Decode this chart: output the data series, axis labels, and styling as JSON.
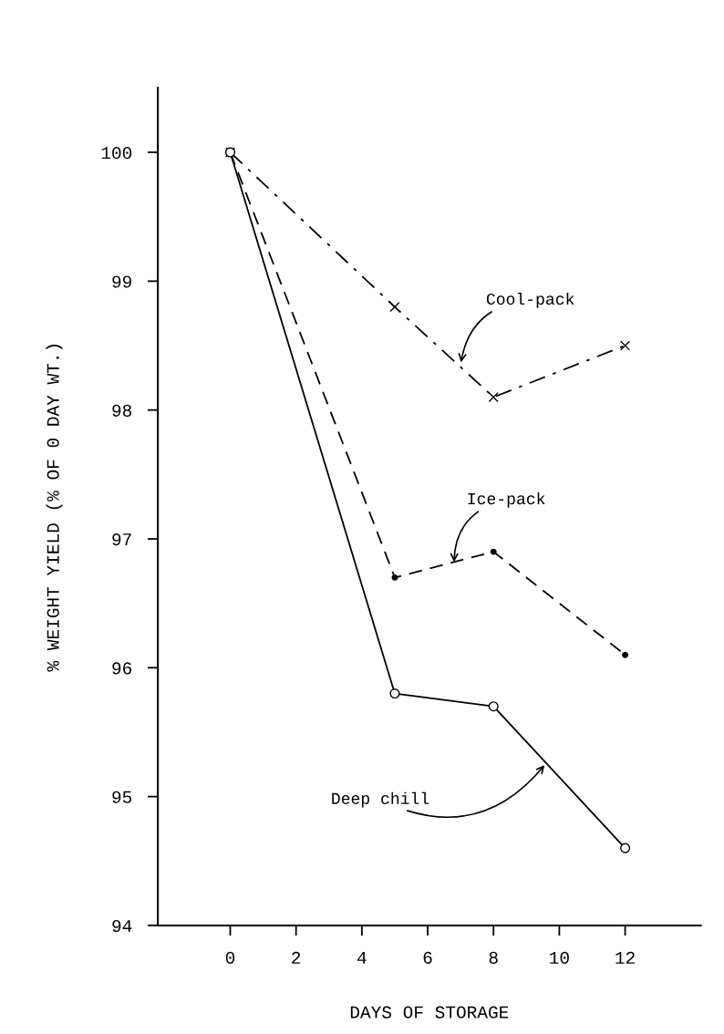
{
  "chart_data": {
    "type": "line",
    "xlabel": "DAYS OF STORAGE",
    "ylabel": "% WEIGHT YIELD (% OF 0 DAY WT.)",
    "x": [
      0,
      5,
      8,
      12
    ],
    "series": [
      {
        "color": "#000000",
        "values": [
          100,
          98.8,
          98.1,
          98.5
        ],
        "line_style": "dashdot",
        "marker": "cross"
      },
      {
        "color": "#000000",
        "values": [
          100,
          96.7,
          96.9,
          96.1
        ],
        "line_style": "dashed",
        "marker": "dot"
      },
      {
        "color": "#000000",
        "values": [
          100,
          95.8,
          95.7,
          94.6
        ],
        "line_style": "solid",
        "marker": "circle"
      }
    ],
    "annotations": [
      {
        "text": "Cool-pack",
        "x": 7,
        "y": 98.35
      },
      {
        "text": "Ice-pack",
        "x": 6.8,
        "y": 96.8
      },
      {
        "text": "Deep chill",
        "x": 9.6,
        "y": 95.26
      }
    ],
    "xlim": [
      -2.2,
      14.3
    ],
    "ylim": [
      94,
      100.5
    ],
    "xticks": [
      0,
      2,
      4,
      6,
      8,
      10,
      12
    ],
    "yticks": [
      94,
      95,
      96,
      97,
      98,
      99,
      100
    ],
    "grid": false,
    "legend": false
  }
}
